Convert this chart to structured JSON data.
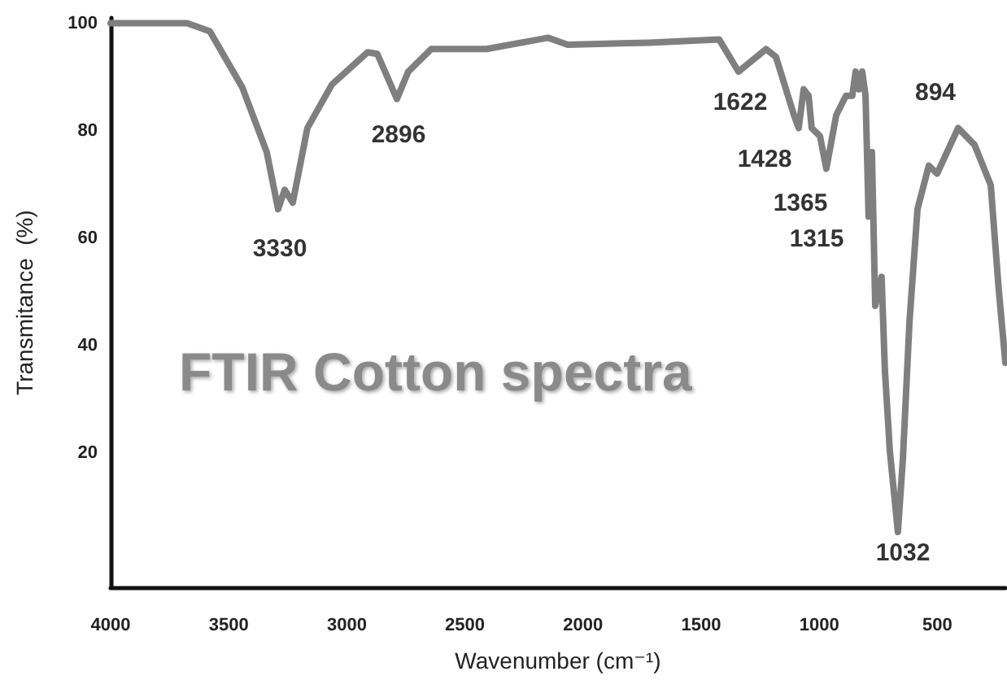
{
  "chart_data": {
    "type": "line",
    "title": "FTIR Cotton spectra",
    "xlabel": "Wavenumber (cm⁻¹)",
    "ylabel": "Transmitance  (%)",
    "xlim": [
      4000,
      212
    ],
    "xticks": [
      4000,
      3500,
      3000,
      2500,
      2000,
      1500,
      1000,
      500
    ],
    "ylim": [
      -5,
      101
    ],
    "yticks": [
      20,
      40,
      60,
      80,
      100
    ],
    "grid": false,
    "marker": "none",
    "line_style": "solid",
    "series": [
      {
        "color": "#7f7f7f",
        "x": [
          4000,
          3676,
          3580,
          3442,
          3339,
          3291,
          3263,
          3229,
          3167,
          3063,
          2912,
          2871,
          2788,
          2740,
          2643,
          2409,
          2147,
          2065,
          1720,
          1424,
          1342,
          1225,
          1183,
          1107,
          1087,
          1066,
          1045,
          1032,
          997,
          970,
          928,
          887,
          860,
          846,
          832,
          818,
          804,
          791,
          777,
          763,
          736,
          722,
          701,
          667,
          646,
          618,
          584,
          536,
          501,
          412,
          343,
          274,
          240,
          212
        ],
        "values": [
          100,
          100,
          98.5,
          88,
          76,
          65.4,
          69,
          66.6,
          80.5,
          88.6,
          94.6,
          94.3,
          85.9,
          91,
          95.2,
          95.2,
          97.3,
          96,
          96.4,
          97,
          91,
          95.2,
          93.7,
          82.9,
          80.5,
          87.7,
          86.5,
          80.5,
          79,
          72.9,
          82.9,
          86.5,
          86.5,
          91,
          87.7,
          91,
          86.5,
          64,
          76,
          47.4,
          52.8,
          35.3,
          20.3,
          5.3,
          18.8,
          44.4,
          65.4,
          73.5,
          72,
          80.5,
          77.4,
          69.9,
          50.4,
          36.8
        ]
      }
    ],
    "annotations": [
      "3330",
      "2896",
      "1622",
      "1428",
      "1365",
      "1315",
      "894",
      "1032"
    ]
  }
}
